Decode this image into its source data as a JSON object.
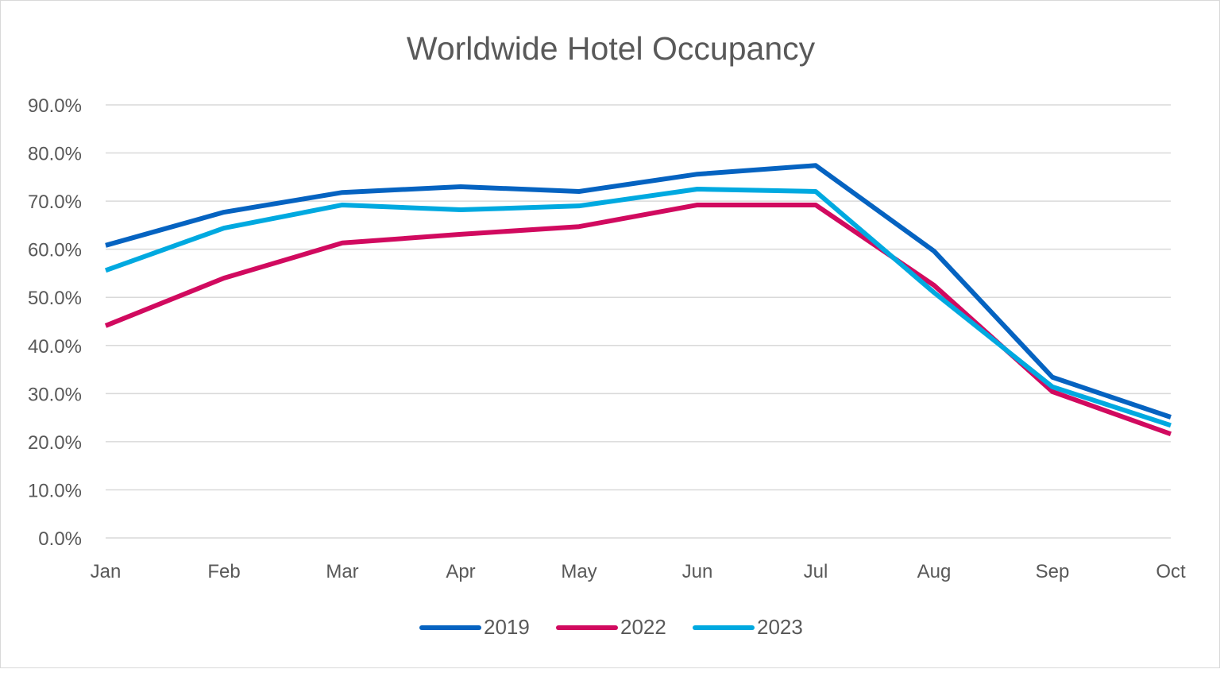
{
  "chart_data": {
    "type": "line",
    "title": "Worldwide Hotel Occupancy",
    "xlabel": "",
    "ylabel": "",
    "categories": [
      "Jan",
      "Feb",
      "Mar",
      "Apr",
      "May",
      "Jun",
      "Jul",
      "Aug",
      "Sep",
      "Oct"
    ],
    "ylim": [
      0,
      90
    ],
    "yticks": [
      "0.0%",
      "10.0%",
      "20.0%",
      "30.0%",
      "40.0%",
      "50.0%",
      "60.0%",
      "70.0%",
      "80.0%",
      "90.0%"
    ],
    "grid": true,
    "legend_position": "bottom",
    "series": [
      {
        "name": "2019",
        "color": "#0563C1",
        "values": [
          60.8,
          67.7,
          71.8,
          73.0,
          72.0,
          75.6,
          77.4,
          59.6,
          33.4,
          25.1
        ]
      },
      {
        "name": "2022",
        "color": "#D10A5F",
        "values": [
          44.1,
          54.0,
          61.3,
          63.1,
          64.7,
          69.2,
          69.2,
          52.5,
          30.4,
          21.6
        ]
      },
      {
        "name": "2023",
        "color": "#00A9E0",
        "values": [
          55.6,
          64.4,
          69.2,
          68.2,
          69.0,
          72.5,
          72.0,
          51.0,
          31.4,
          23.4
        ]
      }
    ]
  }
}
